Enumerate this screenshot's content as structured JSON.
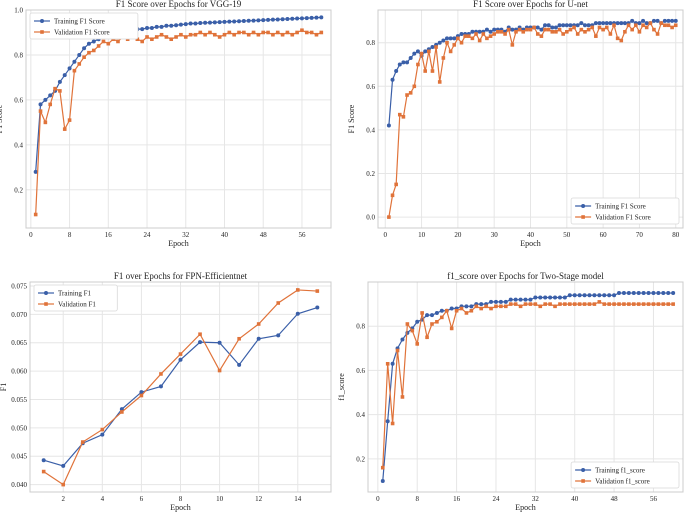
{
  "colors": {
    "training": "#3a5fa8",
    "validation": "#e0733a",
    "grid": "#e6e6e6",
    "axis": "#cccccc"
  },
  "chart_data": [
    {
      "type": "line",
      "title": "F1 Score over Epochs for VGG-19",
      "xlabel": "Epoch",
      "ylabel": "F1 Score",
      "xlim": [
        -1,
        62
      ],
      "ylim": [
        0.03,
        1.0
      ],
      "xticks": [
        0,
        8,
        16,
        24,
        32,
        40,
        48,
        56
      ],
      "yticks": [
        0.2,
        0.4,
        0.6,
        0.8,
        1.0
      ],
      "ytick_labels": [
        "0.2",
        "0.4",
        "0.6",
        "0.8",
        "1.0"
      ],
      "legend": "top-left",
      "series": [
        {
          "name": "Training F1 Score",
          "x_start": 1,
          "values": [
            0.28,
            0.58,
            0.6,
            0.62,
            0.64,
            0.68,
            0.71,
            0.74,
            0.77,
            0.8,
            0.83,
            0.85,
            0.86,
            0.87,
            0.88,
            0.885,
            0.89,
            0.895,
            0.9,
            0.905,
            0.91,
            0.915,
            0.915,
            0.92,
            0.92,
            0.925,
            0.925,
            0.93,
            0.93,
            0.932,
            0.935,
            0.937,
            0.94,
            0.94,
            0.942,
            0.943,
            0.944,
            0.945,
            0.946,
            0.947,
            0.948,
            0.949,
            0.95,
            0.951,
            0.952,
            0.953,
            0.954,
            0.955,
            0.956,
            0.957,
            0.958,
            0.959,
            0.96,
            0.961,
            0.962,
            0.963,
            0.964,
            0.965,
            0.966,
            0.967
          ]
        },
        {
          "name": "Validation F1 Score",
          "x_start": 1,
          "values": [
            0.09,
            0.55,
            0.5,
            0.58,
            0.65,
            0.64,
            0.47,
            0.51,
            0.73,
            0.76,
            0.79,
            0.81,
            0.82,
            0.84,
            0.86,
            0.85,
            0.87,
            0.86,
            0.88,
            0.87,
            0.88,
            0.87,
            0.86,
            0.88,
            0.87,
            0.88,
            0.89,
            0.88,
            0.87,
            0.88,
            0.89,
            0.88,
            0.89,
            0.89,
            0.9,
            0.89,
            0.9,
            0.89,
            0.88,
            0.89,
            0.9,
            0.89,
            0.9,
            0.9,
            0.89,
            0.9,
            0.89,
            0.9,
            0.9,
            0.89,
            0.9,
            0.89,
            0.9,
            0.89,
            0.9,
            0.91,
            0.9,
            0.9,
            0.89,
            0.9
          ]
        }
      ]
    },
    {
      "type": "line",
      "title": "F1 Score over Epochs for U-net",
      "xlabel": "Epoch",
      "ylabel": "F1 Score",
      "xlim": [
        -2,
        82
      ],
      "ylim": [
        -0.05,
        0.95
      ],
      "xticks": [
        0,
        10,
        20,
        30,
        40,
        50,
        60,
        70,
        80
      ],
      "yticks": [
        0.0,
        0.2,
        0.4,
        0.6,
        0.8
      ],
      "ytick_labels": [
        "0.0",
        "0.2",
        "0.4",
        "0.6",
        "0.8"
      ],
      "legend": "bottom-right",
      "series": [
        {
          "name": "Training F1 Score",
          "x_start": 1,
          "values": [
            0.42,
            0.63,
            0.67,
            0.7,
            0.71,
            0.71,
            0.73,
            0.75,
            0.76,
            0.74,
            0.76,
            0.77,
            0.78,
            0.79,
            0.8,
            0.81,
            0.82,
            0.82,
            0.82,
            0.83,
            0.84,
            0.84,
            0.84,
            0.85,
            0.85,
            0.85,
            0.85,
            0.86,
            0.85,
            0.86,
            0.86,
            0.86,
            0.85,
            0.87,
            0.86,
            0.86,
            0.87,
            0.86,
            0.87,
            0.87,
            0.87,
            0.87,
            0.86,
            0.88,
            0.88,
            0.87,
            0.87,
            0.88,
            0.88,
            0.88,
            0.88,
            0.88,
            0.88,
            0.89,
            0.88,
            0.88,
            0.88,
            0.89,
            0.89,
            0.89,
            0.89,
            0.89,
            0.89,
            0.89,
            0.89,
            0.89,
            0.89,
            0.9,
            0.89,
            0.89,
            0.9,
            0.89,
            0.89,
            0.9,
            0.9,
            0.89,
            0.9,
            0.9,
            0.9,
            0.9
          ]
        },
        {
          "name": "Validation F1 Score",
          "x_start": 1,
          "values": [
            0.0,
            0.1,
            0.15,
            0.47,
            0.46,
            0.56,
            0.57,
            0.6,
            0.7,
            0.75,
            0.67,
            0.76,
            0.67,
            0.78,
            0.62,
            0.73,
            0.8,
            0.76,
            0.79,
            0.82,
            0.8,
            0.83,
            0.83,
            0.82,
            0.84,
            0.81,
            0.84,
            0.82,
            0.83,
            0.84,
            0.85,
            0.85,
            0.84,
            0.86,
            0.79,
            0.85,
            0.86,
            0.85,
            0.86,
            0.86,
            0.87,
            0.84,
            0.83,
            0.86,
            0.86,
            0.85,
            0.85,
            0.86,
            0.84,
            0.85,
            0.86,
            0.87,
            0.84,
            0.86,
            0.85,
            0.86,
            0.87,
            0.83,
            0.87,
            0.86,
            0.87,
            0.84,
            0.88,
            0.82,
            0.81,
            0.85,
            0.88,
            0.86,
            0.88,
            0.85,
            0.88,
            0.87,
            0.89,
            0.86,
            0.84,
            0.89,
            0.88,
            0.88,
            0.87,
            0.88
          ]
        }
      ]
    },
    {
      "type": "line",
      "title": "F1 over Epochs for FPN-Efficientnet",
      "xlabel": "Epoch",
      "ylabel": "F1",
      "xlim": [
        0.3,
        15.7
      ],
      "ylim": [
        0.0387,
        0.0757
      ],
      "xticks": [
        2,
        4,
        6,
        8,
        10,
        12,
        14
      ],
      "yticks": [
        0.04,
        0.045,
        0.05,
        0.055,
        0.06,
        0.065,
        0.07,
        0.075
      ],
      "ytick_labels": [
        "0.040",
        "0.045",
        "0.050",
        "0.055",
        "0.060",
        "0.065",
        "0.070",
        "0.075"
      ],
      "legend": "top-left",
      "series": [
        {
          "name": "Training F1",
          "x_start": 1,
          "values": [
            0.0443,
            0.0433,
            0.0473,
            0.0488,
            0.0533,
            0.0563,
            0.0573,
            0.062,
            0.0651,
            0.065,
            0.0611,
            0.0657,
            0.0663,
            0.0701,
            0.0712
          ]
        },
        {
          "name": "Validation F1",
          "x_start": 1,
          "values": [
            0.0423,
            0.04,
            0.0475,
            0.0497,
            0.0528,
            0.0557,
            0.0595,
            0.063,
            0.0665,
            0.0601,
            0.0657,
            0.0683,
            0.072,
            0.0743,
            0.0741
          ]
        }
      ]
    },
    {
      "type": "line",
      "title": "f1_score over Epochs for Two-Stage model",
      "xlabel": "Epoch",
      "ylabel": "f1_score",
      "xlim": [
        -2,
        62
      ],
      "ylim": [
        0.05,
        1.0
      ],
      "xticks": [
        0,
        8,
        16,
        24,
        32,
        40,
        48,
        56
      ],
      "yticks": [
        0.2,
        0.4,
        0.6,
        0.8
      ],
      "ytick_labels": [
        "0.2",
        "0.4",
        "0.6",
        "0.8"
      ],
      "legend": "bottom-right",
      "series": [
        {
          "name": "Training f1_score",
          "x_start": 1,
          "values": [
            0.1,
            0.37,
            0.63,
            0.7,
            0.74,
            0.77,
            0.79,
            0.82,
            0.83,
            0.85,
            0.85,
            0.86,
            0.87,
            0.87,
            0.88,
            0.88,
            0.89,
            0.89,
            0.89,
            0.9,
            0.9,
            0.9,
            0.91,
            0.91,
            0.91,
            0.91,
            0.92,
            0.92,
            0.92,
            0.92,
            0.92,
            0.93,
            0.93,
            0.93,
            0.93,
            0.93,
            0.93,
            0.93,
            0.94,
            0.94,
            0.94,
            0.94,
            0.94,
            0.94,
            0.94,
            0.94,
            0.94,
            0.94,
            0.95,
            0.95,
            0.95,
            0.95,
            0.95,
            0.95,
            0.95,
            0.95,
            0.95,
            0.95,
            0.95,
            0.95
          ]
        },
        {
          "name": "Validation f1_score",
          "x_start": 1,
          "values": [
            0.16,
            0.63,
            0.36,
            0.69,
            0.48,
            0.81,
            0.78,
            0.72,
            0.86,
            0.75,
            0.81,
            0.82,
            0.84,
            0.87,
            0.79,
            0.87,
            0.88,
            0.86,
            0.87,
            0.89,
            0.88,
            0.89,
            0.88,
            0.89,
            0.89,
            0.89,
            0.9,
            0.9,
            0.89,
            0.9,
            0.9,
            0.9,
            0.89,
            0.9,
            0.9,
            0.89,
            0.9,
            0.9,
            0.9,
            0.9,
            0.9,
            0.9,
            0.9,
            0.9,
            0.91,
            0.9,
            0.9,
            0.9,
            0.9,
            0.9,
            0.9,
            0.9,
            0.9,
            0.9,
            0.9,
            0.9,
            0.9,
            0.9,
            0.9,
            0.9
          ]
        }
      ]
    }
  ]
}
